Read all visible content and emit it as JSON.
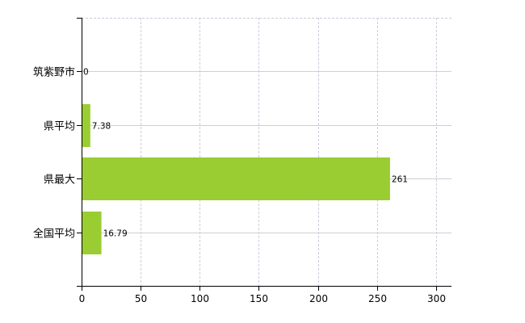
{
  "chart_data": {
    "type": "bar",
    "orientation": "horizontal",
    "categories": [
      "筑紫野市",
      "県平均",
      "県最大",
      "全国平均"
    ],
    "values": [
      0,
      7.38,
      261,
      16.79
    ],
    "value_labels": [
      "0",
      "7.38",
      "261",
      "16.79"
    ],
    "xlim": [
      0,
      313
    ],
    "xticks": [
      0,
      50,
      100,
      150,
      200,
      250,
      300
    ],
    "grid": true,
    "bar_color": "#9acd32",
    "title": "",
    "xlabel": "",
    "ylabel": ""
  }
}
